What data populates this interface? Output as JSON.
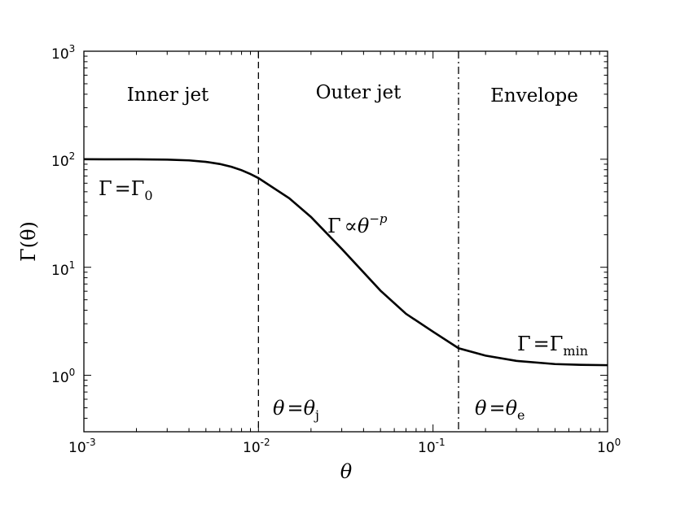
{
  "chart_data": {
    "type": "line",
    "title": "",
    "x_scale": "log",
    "y_scale": "log",
    "xlim": [
      0.001,
      1
    ],
    "ylim": [
      0.3,
      1000
    ],
    "xlabel": "θ",
    "ylabel": {
      "main": "Γ(θ)"
    },
    "x_ticks": [
      {
        "value": 0.001,
        "base": "10",
        "exp": "-3"
      },
      {
        "value": 0.01,
        "base": "10",
        "exp": "-2"
      },
      {
        "value": 0.1,
        "base": "10",
        "exp": "-1"
      },
      {
        "value": 1,
        "base": "10",
        "exp": "0"
      }
    ],
    "y_ticks": [
      {
        "value": 1,
        "base": "10",
        "exp": "0"
      },
      {
        "value": 10,
        "base": "10",
        "exp": "1"
      },
      {
        "value": 100,
        "base": "10",
        "exp": "2"
      },
      {
        "value": 1000,
        "base": "10",
        "exp": "3"
      }
    ],
    "grid": false,
    "series": [
      {
        "color": "#000000",
        "x": [
          0.001,
          0.002,
          0.003,
          0.004,
          0.005,
          0.006,
          0.007,
          0.008,
          0.009,
          0.01,
          0.015,
          0.02,
          0.03,
          0.05,
          0.07,
          0.1,
          0.14,
          0.2,
          0.3,
          0.5,
          0.7,
          1.0
        ],
        "y": [
          100,
          99.8,
          99.2,
          97.6,
          94.6,
          90.4,
          85.1,
          79.2,
          72.9,
          66.9,
          43.6,
          29.2,
          14.8,
          6.08,
          3.71,
          2.53,
          1.78,
          1.52,
          1.36,
          1.27,
          1.25,
          1.24
        ]
      }
    ],
    "vlines": [
      {
        "x": 0.01,
        "style": "dashed"
      },
      {
        "x": 0.14,
        "style": "dashdot"
      }
    ],
    "regions": [
      "Inner jet",
      "Outer jet",
      "Envelope"
    ],
    "annotations": {
      "gamma0": {
        "lhs": "Γ",
        "eq": "=",
        "rhs": "Γ",
        "sub": "0"
      },
      "powerlaw": {
        "lhs": "Γ",
        "op": "∝",
        "rhs": "θ",
        "sup": "−p"
      },
      "gammamin": {
        "lhs": "Γ",
        "eq": "=",
        "rhs": "Γ",
        "sub": "min"
      },
      "thetaj": {
        "lhs": "θ",
        "eq": "=",
        "rhs": "θ",
        "sub": "j"
      },
      "thetae": {
        "lhs": "θ",
        "eq": "=",
        "rhs": "θ",
        "sub": "e"
      }
    }
  }
}
